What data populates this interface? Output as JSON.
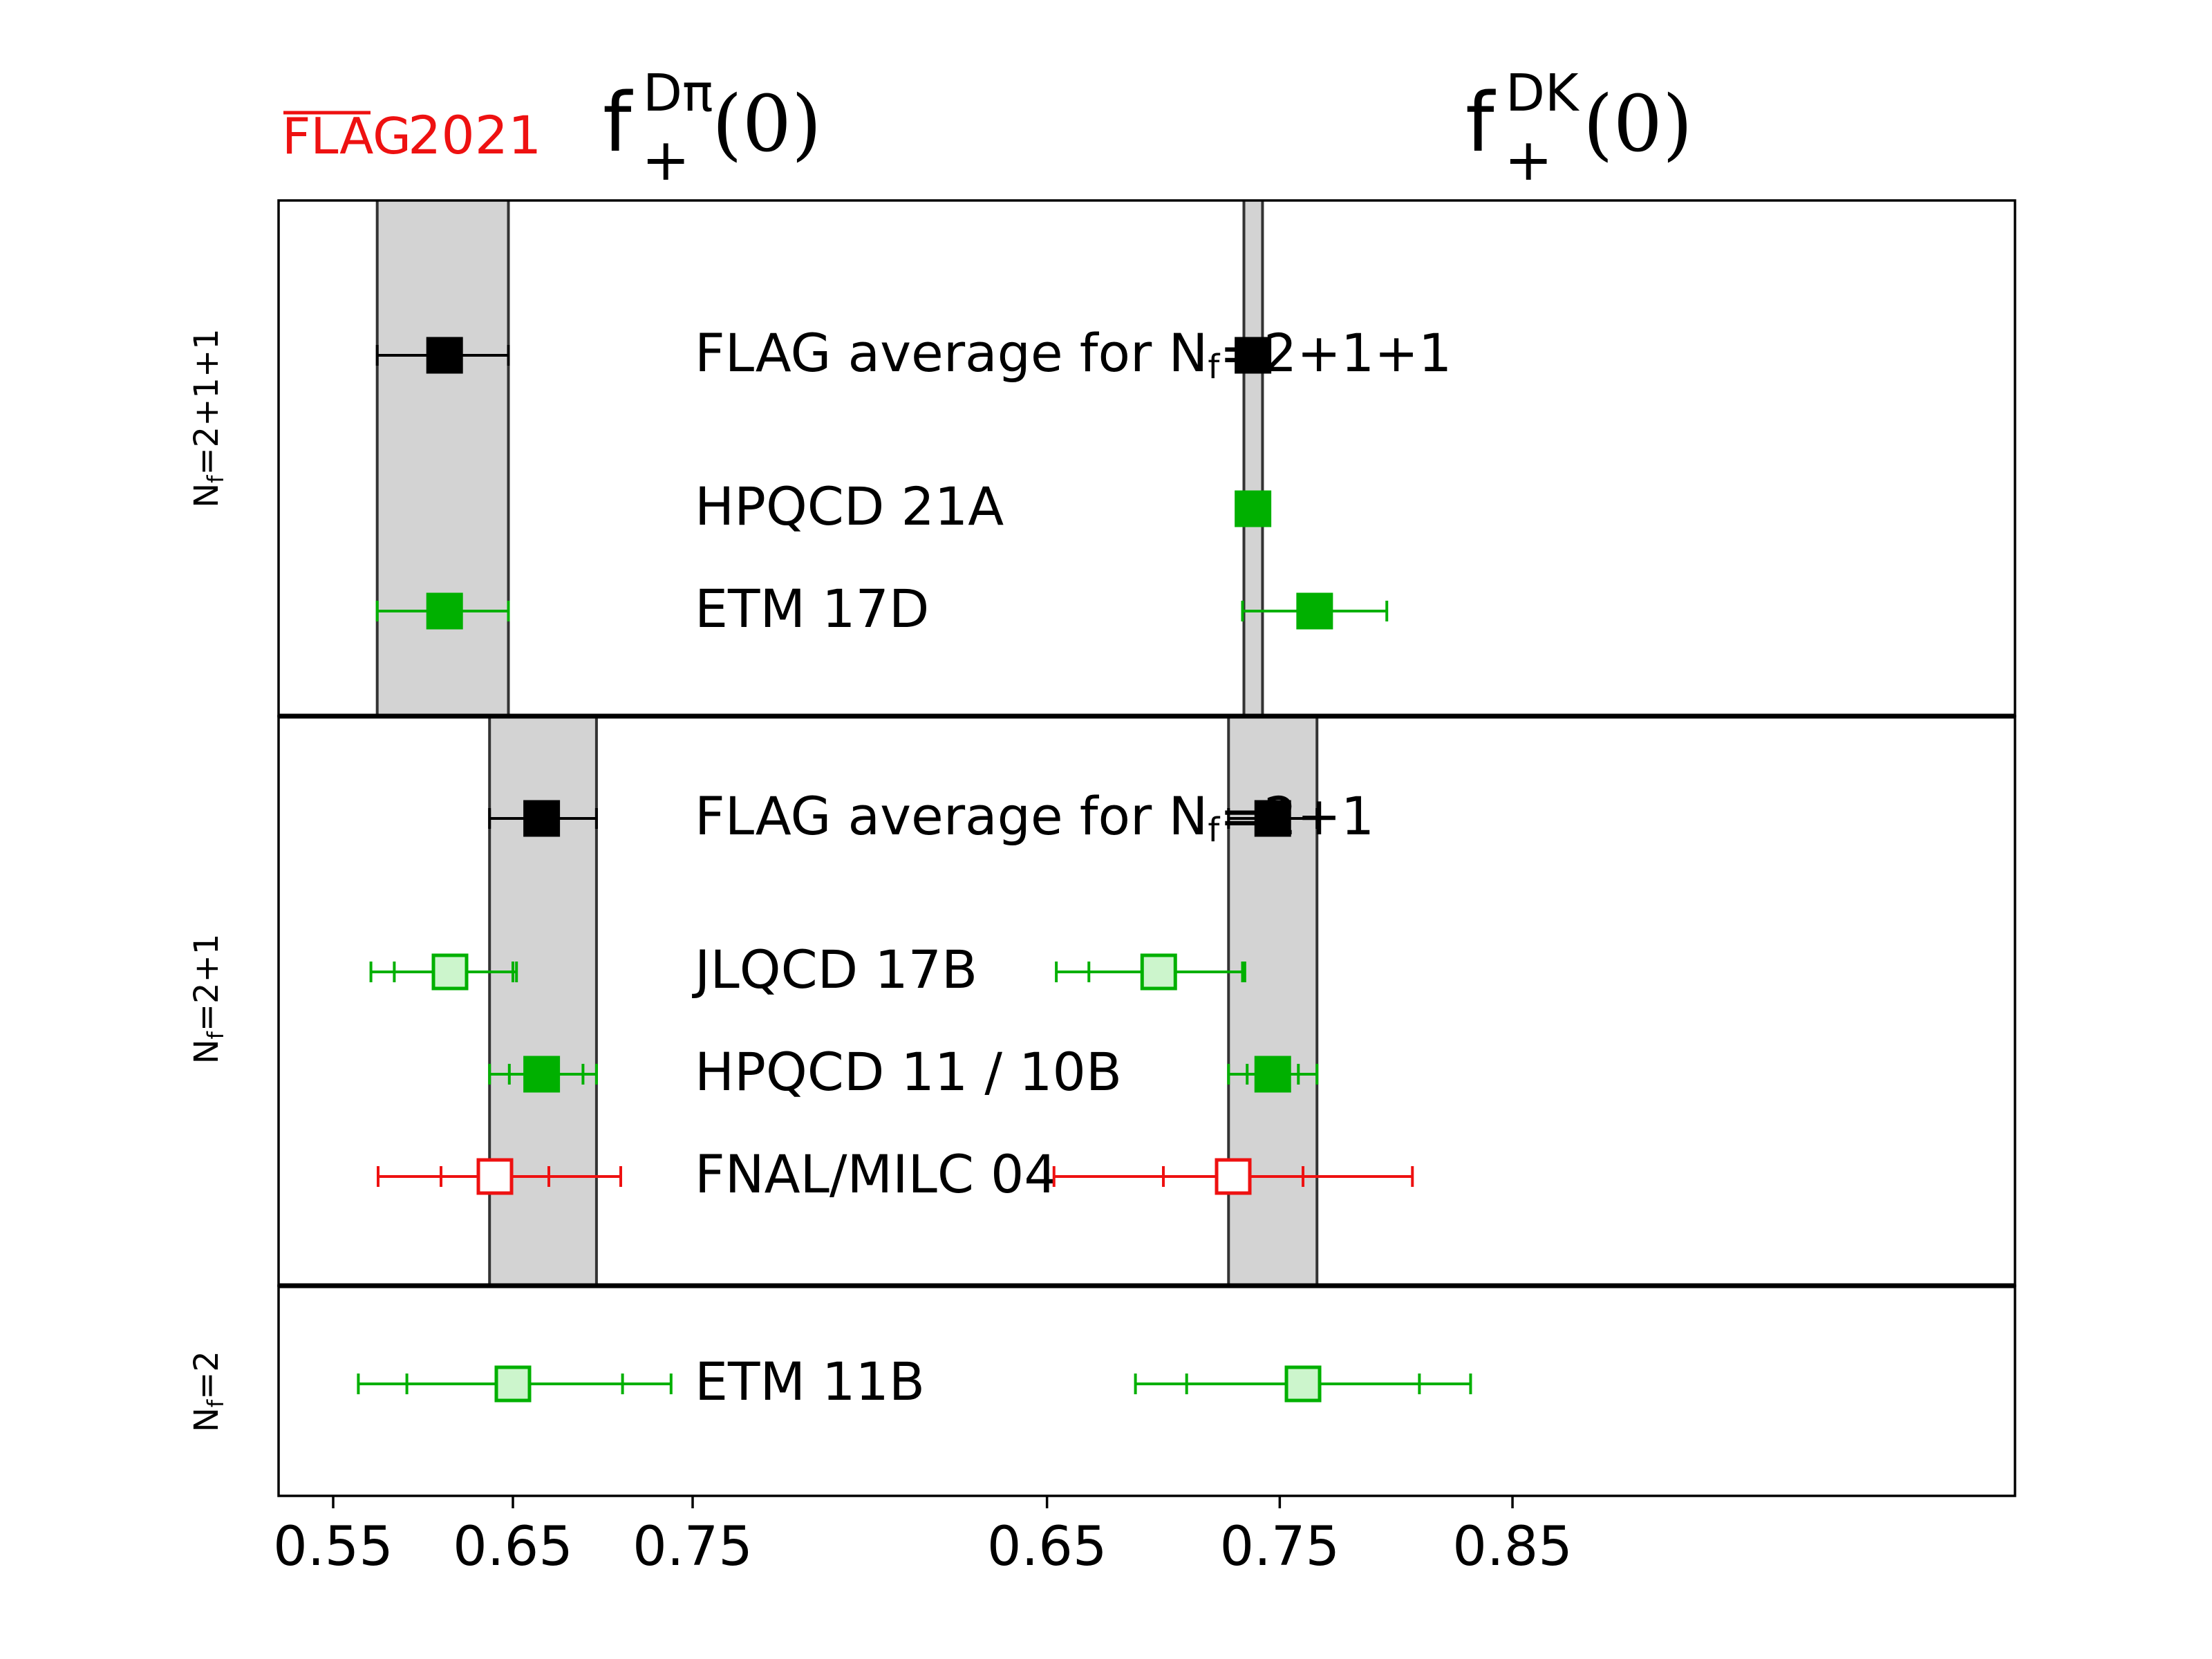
{
  "brand": {
    "flag_text": "FLAG",
    "year_text": "2021",
    "color": "#ee1111"
  },
  "colors": {
    "band": "#d3d3d3",
    "avg": "#000000",
    "green": "#00b000",
    "green_light": "#ccf5cc",
    "red": "#ee1111"
  },
  "chart_data": {
    "type": "scatter",
    "panels": [
      {
        "id": "dpi",
        "title_main": "f",
        "title_sup": "Dπ",
        "title_sub": "+",
        "title_arg": "(0)",
        "xlim": [
          0.52,
          0.85
        ],
        "ticks": [
          0.55,
          0.65,
          0.75
        ],
        "tick_labels": [
          "0.55",
          "0.65",
          "0.75"
        ]
      },
      {
        "id": "dk",
        "title_main": "f",
        "title_sup": "DK",
        "title_sub": "+",
        "title_arg": "(0)",
        "xlim": [
          0.46,
          0.86
        ],
        "ticks": [
          0.65,
          0.75,
          0.85
        ],
        "tick_labels": [
          "0.65",
          "0.75",
          "0.85"
        ]
      }
    ],
    "groups": [
      {
        "label": "Nf=2+1+1",
        "label_main": "N",
        "label_sub": "f",
        "label_rest": "=2+1+1",
        "bands": {
          "dpi": [
            0.5745,
            0.6475
          ],
          "dk": [
            0.7346,
            0.7426
          ]
        },
        "rows": [
          {
            "label": "FLAG average for",
            "label_nf": "=2+1+1",
            "style": "avg",
            "dpi": {
              "v": 0.612,
              "stat": [
                0.5745,
                0.6475
              ],
              "tot": [
                0.5745,
                0.6475
              ]
            },
            "dk": {
              "v": 0.7385,
              "stat": [
                0.7346,
                0.7426
              ],
              "tot": [
                0.7346,
                0.7426
              ]
            }
          },
          {
            "label": "HPQCD 21A",
            "style": "green",
            "dpi": null,
            "dk": {
              "v": 0.7385,
              "stat": [
                0.7346,
                0.7426
              ],
              "tot": [
                0.7346,
                0.7426
              ]
            }
          },
          {
            "label": "ETM 17D",
            "style": "green",
            "dpi": {
              "v": 0.612,
              "stat": [
                0.5745,
                0.6475
              ],
              "tot": [
                0.5745,
                0.6475
              ]
            },
            "dk": {
              "v": 0.765,
              "stat": [
                0.734,
                0.796
              ],
              "tot": [
                0.734,
                0.796
              ]
            }
          }
        ]
      },
      {
        "label": "Nf=2+1",
        "label_main": "N",
        "label_sub": "f",
        "label_rest": "=2+1",
        "bands": {
          "dpi": [
            0.637,
            0.6965
          ],
          "dk": [
            0.728,
            0.766
          ]
        },
        "rows": [
          {
            "label": "FLAG average for",
            "label_nf": "=2+1",
            "style": "avg",
            "dpi": {
              "v": 0.666,
              "stat": [
                0.637,
                0.6965
              ],
              "tot": [
                0.637,
                0.6965
              ]
            },
            "dk": {
              "v": 0.747,
              "stat": [
                0.728,
                0.766
              ],
              "tot": [
                0.728,
                0.766
              ]
            }
          },
          {
            "label": "JLQCD 17B",
            "style": "light",
            "dpi": {
              "v": 0.615,
              "stat": [
                0.584,
                0.65
              ],
              "tot": [
                0.571,
                0.652
              ]
            },
            "dk": {
              "v": 0.698,
              "stat": [
                0.668,
                0.734
              ],
              "tot": [
                0.654,
                0.735
              ]
            }
          },
          {
            "label": "HPQCD 11 / 10B",
            "style": "green",
            "dpi": {
              "v": 0.666,
              "stat": [
                0.648,
                0.689
              ],
              "tot": [
                0.637,
                0.6965
              ]
            },
            "dk": {
              "v": 0.747,
              "stat": [
                0.736,
                0.758
              ],
              "tot": [
                0.728,
                0.766
              ]
            }
          },
          {
            "label": "FNAL/MILC 04",
            "style": "red",
            "dpi": {
              "v": 0.64,
              "stat": [
                0.61,
                0.67
              ],
              "tot": [
                0.575,
                0.71
              ]
            },
            "dk": {
              "v": 0.73,
              "stat": [
                0.7,
                0.76
              ],
              "tot": [
                0.653,
                0.807
              ]
            }
          }
        ]
      },
      {
        "label": "Nf=2",
        "label_main": "N",
        "label_sub": "f",
        "label_rest": "=2",
        "bands": null,
        "rows": [
          {
            "label": "ETM 11B",
            "style": "light",
            "dpi": {
              "v": 0.65,
              "stat": [
                0.591,
                0.711
              ],
              "tot": [
                0.564,
                0.738
              ]
            },
            "dk": {
              "v": 0.76,
              "stat": [
                0.71,
                0.81
              ],
              "tot": [
                0.688,
                0.832
              ]
            }
          }
        ]
      }
    ]
  }
}
